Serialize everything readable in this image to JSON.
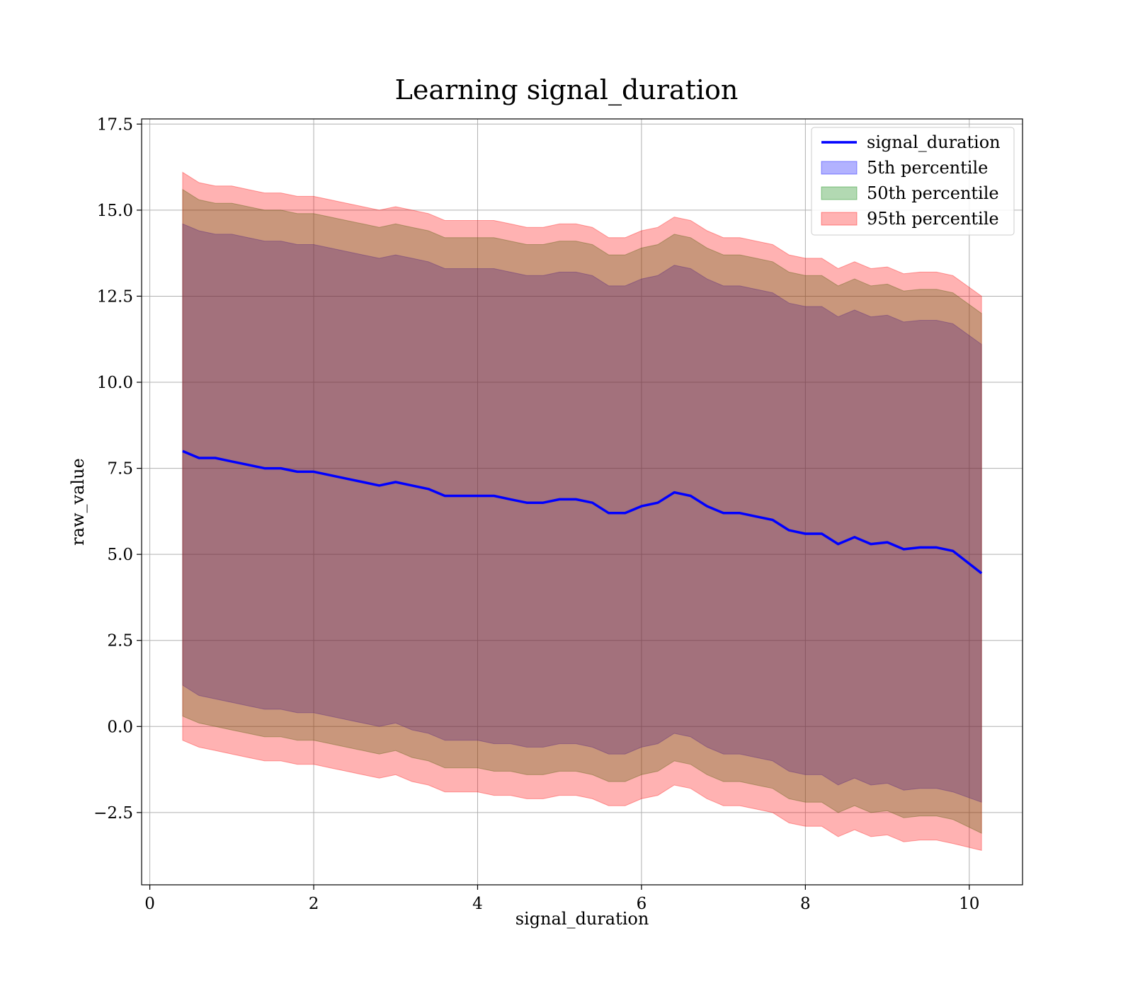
{
  "chart_data": {
    "type": "area",
    "title": "Learning signal_duration",
    "xlabel": "signal_duration",
    "ylabel": "raw_value",
    "xlim": [
      -0.1,
      10.65
    ],
    "ylim": [
      -4.6,
      17.65
    ],
    "x_ticks": [
      0,
      2,
      4,
      6,
      8,
      10
    ],
    "x_tick_labels": [
      "0",
      "2",
      "4",
      "6",
      "8",
      "10"
    ],
    "y_ticks": [
      -2.5,
      0.0,
      2.5,
      5.0,
      7.5,
      10.0,
      12.5,
      15.0,
      17.5
    ],
    "y_tick_labels": [
      "−2.5",
      "0.0",
      "2.5",
      "5.0",
      "7.5",
      "10.0",
      "12.5",
      "15.0",
      "17.5"
    ],
    "grid": true,
    "legend_position": "top-right",
    "colors": {
      "line": "#0000ff",
      "band_5": "#0000ff",
      "band_50": "#008000",
      "band_95": "#ff0000"
    },
    "x": [
      0.4,
      0.6,
      0.8,
      1.0,
      1.2,
      1.4,
      1.6,
      1.8,
      2.0,
      2.2,
      2.4,
      2.6,
      2.8,
      3.0,
      3.2,
      3.4,
      3.6,
      3.8,
      4.0,
      4.2,
      4.4,
      4.6,
      4.8,
      5.0,
      5.2,
      5.4,
      5.6,
      5.8,
      6.0,
      6.2,
      6.4,
      6.6,
      6.8,
      7.0,
      7.2,
      7.4,
      7.6,
      7.8,
      8.0,
      8.2,
      8.4,
      8.6,
      8.8,
      9.0,
      9.2,
      9.4,
      9.6,
      9.8,
      10.15
    ],
    "series": [
      {
        "name": "signal_duration",
        "values": [
          8.0,
          7.8,
          7.8,
          7.7,
          7.6,
          7.5,
          7.5,
          7.4,
          7.4,
          7.3,
          7.2,
          7.1,
          7.0,
          7.1,
          7.0,
          6.9,
          6.7,
          6.7,
          6.7,
          6.7,
          6.6,
          6.5,
          6.5,
          6.6,
          6.6,
          6.5,
          6.2,
          6.2,
          6.4,
          6.5,
          6.8,
          6.7,
          6.4,
          6.2,
          6.2,
          6.1,
          6.0,
          5.7,
          5.6,
          5.6,
          5.3,
          5.5,
          5.3,
          5.35,
          5.15,
          5.2,
          5.2,
          5.1,
          4.45
        ]
      },
      {
        "name": "5th percentile",
        "lower": [
          1.2,
          0.9,
          0.8,
          0.7,
          0.6,
          0.5,
          0.5,
          0.4,
          0.4,
          0.3,
          0.2,
          0.1,
          0.0,
          0.1,
          -0.1,
          -0.2,
          -0.4,
          -0.4,
          -0.4,
          -0.5,
          -0.5,
          -0.6,
          -0.6,
          -0.5,
          -0.5,
          -0.6,
          -0.8,
          -0.8,
          -0.6,
          -0.5,
          -0.2,
          -0.3,
          -0.6,
          -0.8,
          -0.8,
          -0.9,
          -1.0,
          -1.3,
          -1.4,
          -1.4,
          -1.7,
          -1.5,
          -1.7,
          -1.65,
          -1.85,
          -1.8,
          -1.8,
          -1.9,
          -2.2
        ],
        "upper": [
          14.6,
          14.4,
          14.3,
          14.3,
          14.2,
          14.1,
          14.1,
          14.0,
          14.0,
          13.9,
          13.8,
          13.7,
          13.6,
          13.7,
          13.6,
          13.5,
          13.3,
          13.3,
          13.3,
          13.3,
          13.2,
          13.1,
          13.1,
          13.2,
          13.2,
          13.1,
          12.8,
          12.8,
          13.0,
          13.1,
          13.4,
          13.3,
          13.0,
          12.8,
          12.8,
          12.7,
          12.6,
          12.3,
          12.2,
          12.2,
          11.9,
          12.1,
          11.9,
          11.95,
          11.75,
          11.8,
          11.8,
          11.7,
          11.1
        ]
      },
      {
        "name": "50th percentile",
        "lower": [
          0.3,
          0.1,
          0.0,
          -0.1,
          -0.2,
          -0.3,
          -0.3,
          -0.4,
          -0.4,
          -0.5,
          -0.6,
          -0.7,
          -0.8,
          -0.7,
          -0.9,
          -1.0,
          -1.2,
          -1.2,
          -1.2,
          -1.3,
          -1.3,
          -1.4,
          -1.4,
          -1.3,
          -1.3,
          -1.4,
          -1.6,
          -1.6,
          -1.4,
          -1.3,
          -1.0,
          -1.1,
          -1.4,
          -1.6,
          -1.6,
          -1.7,
          -1.8,
          -2.1,
          -2.2,
          -2.2,
          -2.5,
          -2.3,
          -2.5,
          -2.45,
          -2.65,
          -2.6,
          -2.6,
          -2.7,
          -3.1
        ],
        "upper": [
          15.6,
          15.3,
          15.2,
          15.2,
          15.1,
          15.0,
          15.0,
          14.9,
          14.9,
          14.8,
          14.7,
          14.6,
          14.5,
          14.6,
          14.5,
          14.4,
          14.2,
          14.2,
          14.2,
          14.2,
          14.1,
          14.0,
          14.0,
          14.1,
          14.1,
          14.0,
          13.7,
          13.7,
          13.9,
          14.0,
          14.3,
          14.2,
          13.9,
          13.7,
          13.7,
          13.6,
          13.5,
          13.2,
          13.1,
          13.1,
          12.8,
          13.0,
          12.8,
          12.85,
          12.65,
          12.7,
          12.7,
          12.6,
          12.0
        ]
      },
      {
        "name": "95th percentile",
        "lower": [
          -0.4,
          -0.6,
          -0.7,
          -0.8,
          -0.9,
          -1.0,
          -1.0,
          -1.1,
          -1.1,
          -1.2,
          -1.3,
          -1.4,
          -1.5,
          -1.4,
          -1.6,
          -1.7,
          -1.9,
          -1.9,
          -1.9,
          -2.0,
          -2.0,
          -2.1,
          -2.1,
          -2.0,
          -2.0,
          -2.1,
          -2.3,
          -2.3,
          -2.1,
          -2.0,
          -1.7,
          -1.8,
          -2.1,
          -2.3,
          -2.3,
          -2.4,
          -2.5,
          -2.8,
          -2.9,
          -2.9,
          -3.2,
          -3.0,
          -3.2,
          -3.15,
          -3.35,
          -3.3,
          -3.3,
          -3.4,
          -3.6
        ],
        "upper": [
          16.1,
          15.8,
          15.7,
          15.7,
          15.6,
          15.5,
          15.5,
          15.4,
          15.4,
          15.3,
          15.2,
          15.1,
          15.0,
          15.1,
          15.0,
          14.9,
          14.7,
          14.7,
          14.7,
          14.7,
          14.6,
          14.5,
          14.5,
          14.6,
          14.6,
          14.5,
          14.2,
          14.2,
          14.4,
          14.5,
          14.8,
          14.7,
          14.4,
          14.2,
          14.2,
          14.1,
          14.0,
          13.7,
          13.6,
          13.6,
          13.3,
          13.5,
          13.3,
          13.35,
          13.15,
          13.2,
          13.2,
          13.1,
          12.5
        ]
      }
    ]
  }
}
